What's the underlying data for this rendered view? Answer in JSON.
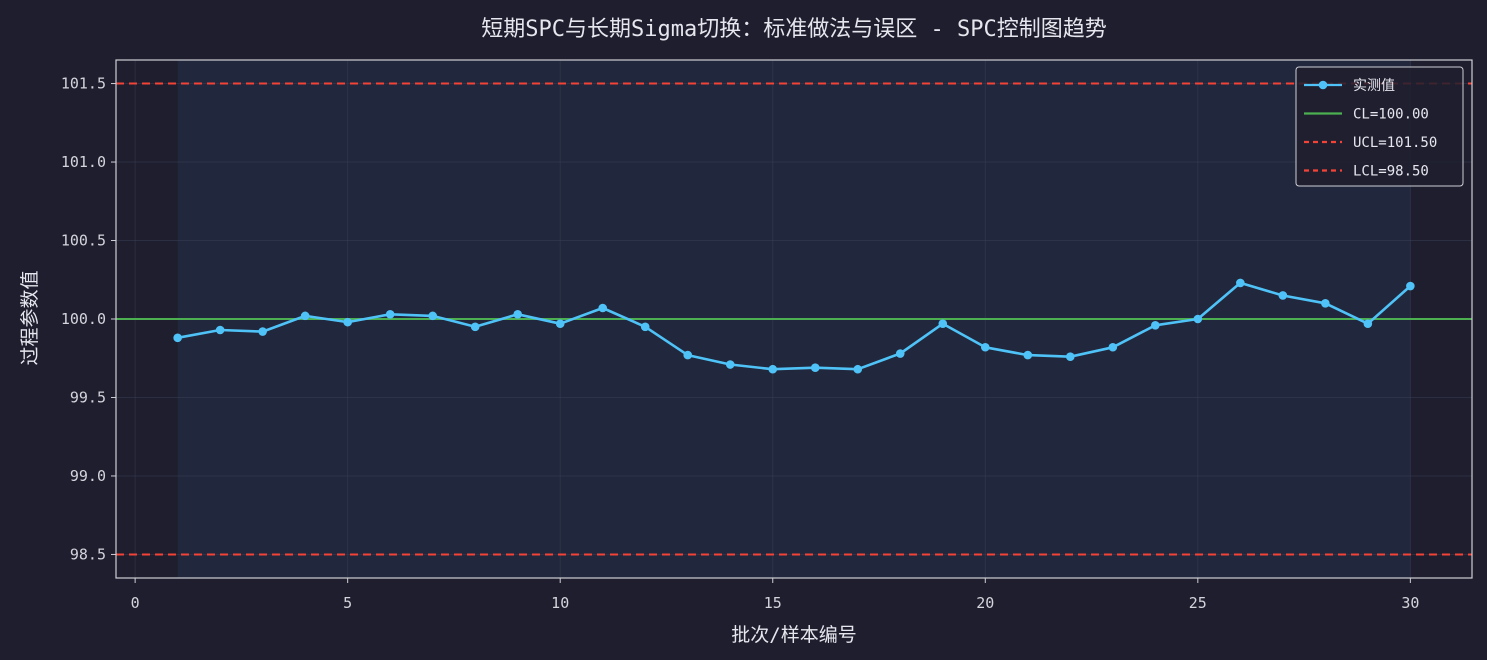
{
  "chart_data": {
    "type": "line",
    "title": "短期SPC与长期Sigma切换：标准做法与误区 - SPC控制图趋势",
    "xlabel": "批次/样本编号",
    "ylabel": "过程参数值",
    "xlim": [
      -0.45,
      31.45
    ],
    "ylim": [
      98.35,
      101.65
    ],
    "xticks": [
      0,
      5,
      10,
      15,
      20,
      25,
      30
    ],
    "xtick_labels": [
      "0",
      "5",
      "10",
      "15",
      "20",
      "25",
      "30"
    ],
    "yticks": [
      98.5,
      99.0,
      99.5,
      100.0,
      100.5,
      101.0,
      101.5
    ],
    "ytick_labels": [
      "98.5",
      "99.0",
      "99.5",
      "100.0",
      "100.5",
      "101.0",
      "101.5"
    ],
    "grid": true,
    "legend_position": "top-right",
    "shaded_region": [
      1,
      30
    ],
    "series": [
      {
        "name": "实测值",
        "color": "#4fc3f7",
        "x": [
          1,
          2,
          3,
          4,
          5,
          6,
          7,
          8,
          9,
          10,
          11,
          12,
          13,
          14,
          15,
          16,
          17,
          18,
          19,
          20,
          21,
          22,
          23,
          24,
          25,
          26,
          27,
          28,
          29,
          30
        ],
        "values": [
          99.88,
          99.93,
          99.92,
          100.02,
          99.98,
          100.03,
          100.02,
          99.95,
          100.03,
          99.97,
          100.07,
          99.95,
          99.77,
          99.71,
          99.68,
          99.69,
          99.68,
          99.78,
          99.97,
          99.82,
          99.77,
          99.76,
          99.82,
          99.96,
          100.0,
          100.23,
          100.15,
          100.1,
          99.97,
          100.21
        ]
      }
    ],
    "reference_lines": [
      {
        "name": "CL=100.00",
        "value": 100.0,
        "color": "#4caf50",
        "style": "solid"
      },
      {
        "name": "UCL=101.50",
        "value": 101.5,
        "color": "#f44336",
        "style": "dashed"
      },
      {
        "name": "LCL=98.50",
        "value": 98.5,
        "color": "#f44336",
        "style": "dashed"
      }
    ]
  }
}
